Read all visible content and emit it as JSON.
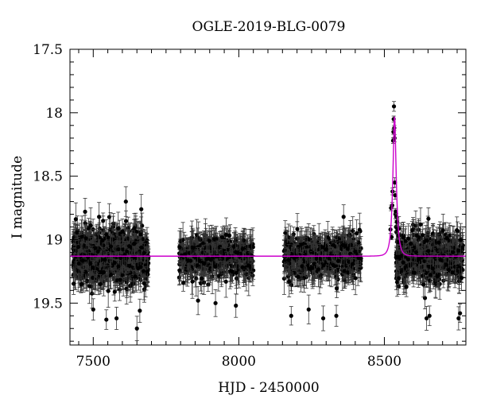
{
  "chart_data": {
    "type": "scatter",
    "title": "OGLE-2019-BLG-0079",
    "xlabel": "HJD - 2450000",
    "ylabel": "I magnitude",
    "xlim": [
      7420,
      8780
    ],
    "ylim": [
      19.83,
      17.5
    ],
    "y_inverted": true,
    "xticks": [
      7500,
      8000,
      8500
    ],
    "xtick_labels": [
      "7500",
      "8000",
      "8500"
    ],
    "yticks": [
      17.5,
      18,
      18.5,
      19,
      19.5
    ],
    "ytick_labels": [
      "17.5",
      "18",
      "18.5",
      "19",
      "19.5"
    ],
    "grid": false,
    "legend": "none",
    "baseline_magnitude": 19.13,
    "observing_seasons": [
      {
        "x_start": 7430,
        "x_end": 7690,
        "n_points": 900,
        "y_mean": 19.13,
        "y_spread": 0.15
      },
      {
        "x_start": 7795,
        "x_end": 8050,
        "n_points": 520,
        "y_mean": 19.13,
        "y_spread": 0.11
      },
      {
        "x_start": 8155,
        "x_end": 8420,
        "n_points": 560,
        "y_mean": 19.13,
        "y_spread": 0.12
      },
      {
        "x_start": 8540,
        "x_end": 8770,
        "n_points": 560,
        "y_mean": 19.14,
        "y_spread": 0.14
      }
    ],
    "event_points": {
      "x": [
        8521,
        8523,
        8525,
        8527,
        8528,
        8530,
        8531,
        8532,
        8533,
        8534,
        8535,
        8536,
        8537,
        8538,
        8539,
        8540,
        8541,
        8543,
        8545,
        8548,
        8551
      ],
      "y": [
        18.92,
        18.75,
        18.98,
        18.73,
        18.62,
        18.22,
        18.15,
        18.05,
        17.95,
        18.12,
        18.2,
        18.55,
        18.65,
        18.8,
        18.78,
        18.9,
        18.82,
        18.86,
        18.92,
        18.97,
        19.02
      ]
    },
    "outlier_points": {
      "x": [
        7472,
        7545,
        7580,
        7650,
        7660,
        7665,
        7612,
        7520,
        7500,
        8180,
        8290,
        8335,
        8360,
        8405,
        8645,
        8655,
        8755,
        8760,
        7860,
        7920,
        7990,
        8240
      ],
      "y": [
        18.78,
        19.63,
        19.62,
        19.7,
        19.56,
        18.76,
        18.7,
        18.82,
        19.55,
        19.6,
        19.62,
        19.6,
        18.82,
        18.95,
        19.62,
        19.6,
        19.62,
        19.58,
        19.48,
        19.5,
        19.52,
        19.55
      ]
    },
    "model_curve": {
      "name": "",
      "color": "#cc00cc",
      "baseline": 19.13,
      "peak_x": 8535,
      "peak_y": 18.03,
      "t_E": 11.5,
      "u0": 0.37
    },
    "point_color": "#000000",
    "errorbar_color": "#333333"
  }
}
